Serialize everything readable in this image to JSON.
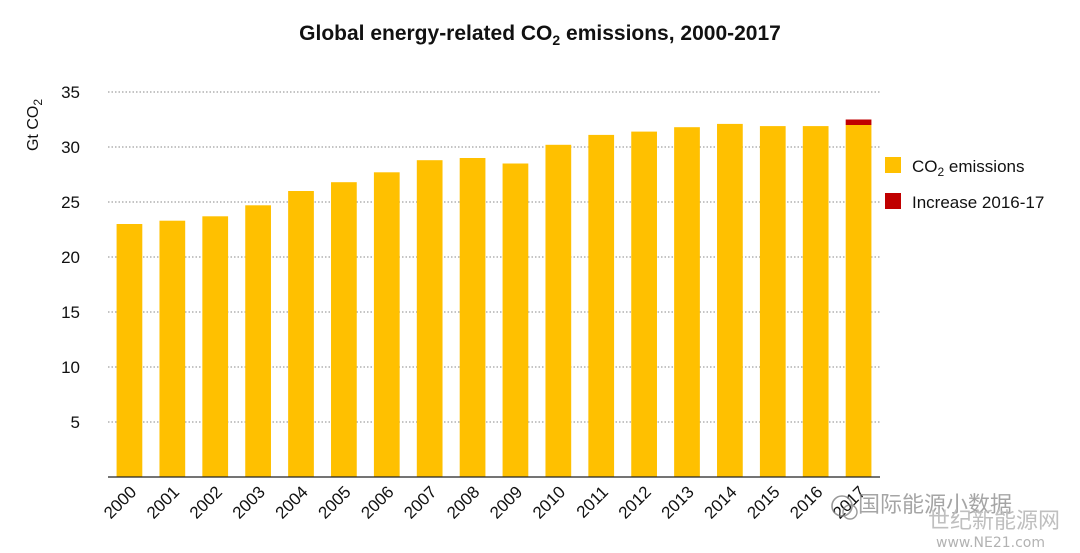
{
  "chart_data": {
    "type": "bar",
    "title_main": "Global energy-related CO",
    "title_sub": "2",
    "title_tail": " emissions, 2000-2017",
    "ylabel_main": "Gt CO",
    "ylabel_sub": "2",
    "ylim": [
      0,
      35
    ],
    "yticks": [
      "5",
      "10",
      "15",
      "20",
      "25",
      "30",
      "35"
    ],
    "ytick_values": [
      5,
      10,
      15,
      20,
      25,
      30,
      35
    ],
    "grid": true,
    "legend_position": "right",
    "categories": [
      "2000",
      "2001",
      "2002",
      "2003",
      "2004",
      "2005",
      "2006",
      "2007",
      "2008",
      "2009",
      "2010",
      "2011",
      "2012",
      "2013",
      "2014",
      "2015",
      "2016",
      "2017"
    ],
    "series": [
      {
        "name": "CO₂ emissions",
        "legend_main": "CO",
        "legend_sub": "2",
        "legend_tail": " emissions",
        "color": "#FFC000",
        "values": [
          23.0,
          23.3,
          23.7,
          24.7,
          26.0,
          26.8,
          27.7,
          28.8,
          29.0,
          28.5,
          30.2,
          31.1,
          31.4,
          31.8,
          32.1,
          31.9,
          31.9,
          32.0
        ]
      },
      {
        "name": "Increase 2016-17",
        "color": "#C00000",
        "values": [
          0,
          0,
          0,
          0,
          0,
          0,
          0,
          0,
          0,
          0,
          0,
          0,
          0,
          0,
          0,
          0,
          0,
          0.5
        ]
      }
    ]
  },
  "watermark": {
    "line1": "国际能源小数据",
    "line2": "世纪新能源网",
    "line3": "www.NE21.com"
  }
}
